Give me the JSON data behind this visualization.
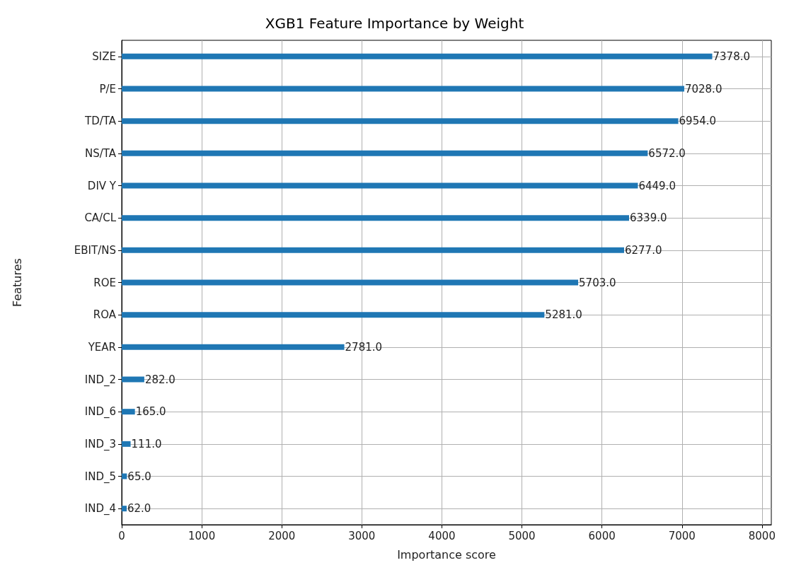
{
  "chart_data": {
    "type": "bar",
    "orientation": "horizontal",
    "title": "XGB1 Feature Importance by Weight",
    "xlabel": "Importance score",
    "ylabel": "Features",
    "categories": [
      "SIZE",
      "P/E",
      "TD/TA",
      "NS/TA",
      "DIV Y",
      "CA/CL",
      "EBIT/NS",
      "ROE",
      "ROA",
      "YEAR",
      "IND_2",
      "IND_6",
      "IND_3",
      "IND_5",
      "IND_4"
    ],
    "values": [
      7378,
      7028,
      6954,
      6572,
      6449,
      6339,
      6277,
      5703,
      5281,
      2781,
      282,
      165,
      111,
      65,
      62
    ],
    "value_labels": [
      "7378.0",
      "7028.0",
      "6954.0",
      "6572.0",
      "6449.0",
      "6339.0",
      "6277.0",
      "5703.0",
      "5281.0",
      "2781.0",
      "282.0",
      "165.0",
      "111.0",
      "65.0",
      "62.0"
    ],
    "color": "#1f77b4",
    "xlim": [
      0,
      8116
    ],
    "xticks": [
      0,
      1000,
      2000,
      3000,
      4000,
      5000,
      6000,
      7000,
      8000
    ],
    "grid": true
  }
}
